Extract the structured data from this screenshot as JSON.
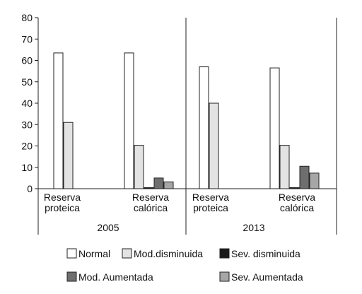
{
  "chart_data": {
    "type": "bar",
    "ylim": [
      0,
      80
    ],
    "yticks": [
      0,
      10,
      20,
      30,
      40,
      50,
      60,
      70,
      80
    ],
    "grid": false,
    "legend_position": "bottom",
    "groups": [
      {
        "label": "2005",
        "categories": [
          {
            "label_lines": [
              "Reserva",
              "proteica"
            ],
            "values": [
              63.5,
              31,
              0,
              0,
              0
            ]
          },
          {
            "label_lines": [
              "Reserva",
              "calórica"
            ],
            "values": [
              63.5,
              20.3,
              0.5,
              5,
              3.2
            ]
          }
        ]
      },
      {
        "label": "2013",
        "categories": [
          {
            "label_lines": [
              "Reserva",
              "proteica"
            ],
            "values": [
              57,
              40,
              0,
              0,
              0
            ]
          },
          {
            "label_lines": [
              "Reserva",
              "calórica"
            ],
            "values": [
              56.5,
              20.3,
              0.5,
              10.5,
              7.3
            ]
          }
        ]
      }
    ],
    "series": [
      {
        "name": "Normal",
        "color": "#ffffff"
      },
      {
        "name": "Mod.disminuida",
        "color": "#e3e3e3"
      },
      {
        "name": "Sev. disminuida",
        "color": "#1a1a1a"
      },
      {
        "name": "Mod. Aumentada",
        "color": "#6e6e6e"
      },
      {
        "name": "Sev. Aumentada",
        "color": "#a6a6a6"
      }
    ]
  }
}
